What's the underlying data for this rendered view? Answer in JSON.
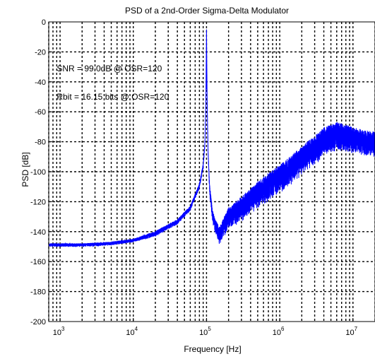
{
  "chart_data": {
    "type": "line",
    "title": "PSD of a 2nd-Order Sigma-Delta Modulator",
    "xlabel": "Frequency [Hz]",
    "ylabel": "PSD [dB]",
    "xscale": "log",
    "xlim": [
      700,
      20000000
    ],
    "ylim": [
      -200,
      0
    ],
    "grid": true,
    "x_ticks": [
      {
        "base": "10",
        "exp": "3"
      },
      {
        "base": "10",
        "exp": "4"
      },
      {
        "base": "10",
        "exp": "5"
      },
      {
        "base": "10",
        "exp": "6"
      },
      {
        "base": "10",
        "exp": "7"
      }
    ],
    "y_ticks": [
      "0",
      "-20",
      "-40",
      "-60",
      "-80",
      "-100",
      "-120",
      "-140",
      "-160",
      "-180",
      "-200"
    ],
    "line_color": "#0000ff",
    "annotations": [
      {
        "text": "SNR = 99.0dB @ OSR=120",
        "x": 900,
        "y": -33
      },
      {
        "text": "Rbit = 16.15 bits @ OSR=120",
        "x": 900,
        "y": -52
      }
    ],
    "series": [
      {
        "x": [
          700,
          2000,
          5000,
          10000,
          20000,
          40000,
          60000,
          80000,
          90000,
          95000,
          98000,
          100000,
          102000,
          105000,
          110000,
          120000,
          130000,
          150000,
          200000,
          300000,
          500000,
          1000000,
          2000000,
          4000000,
          6000000,
          10000000,
          20000000
        ],
        "y": [
          -148,
          -148,
          -147,
          -145,
          -140,
          -132,
          -123,
          -108,
          -95,
          -80,
          -50,
          -5,
          -50,
          -85,
          -108,
          -125,
          -132,
          -138,
          -125,
          -118,
          -108,
          -97,
          -85,
          -72,
          -68,
          -72,
          -75
        ],
        "spread": [
          2,
          2,
          2,
          2,
          3,
          3,
          3,
          3,
          3,
          3,
          3,
          0,
          3,
          4,
          6,
          8,
          8,
          10,
          12,
          14,
          15,
          16,
          16,
          17,
          16,
          15,
          14
        ]
      }
    ]
  }
}
